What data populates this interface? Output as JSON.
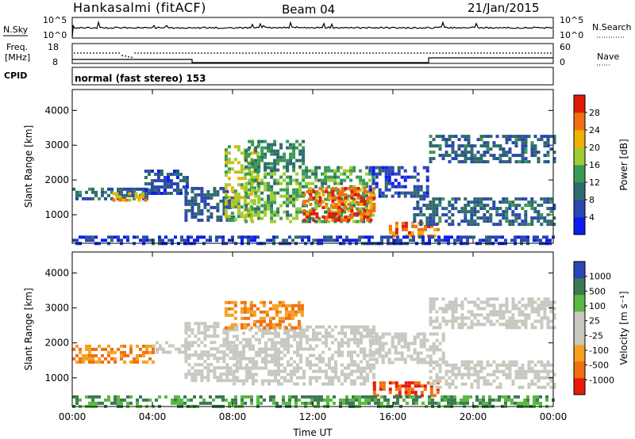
{
  "header": {
    "station": "Hankasalmi (fitACF)",
    "beam": "Beam 04",
    "date": "21/Jan/2015"
  },
  "aux_panel": {
    "nsky_label": "N.Sky",
    "nsky_ticks": [
      "10^5",
      "10^0"
    ],
    "nsearch_label": "N.Search",
    "nsearch_ticks": [
      "10^5",
      "10^0"
    ],
    "freq_label": "Freq.",
    "freq_unit": "[MHz]",
    "freq_ticks": [
      "18",
      "8"
    ],
    "nave_label": "Nave",
    "nave_ticks": [
      "60",
      "0"
    ],
    "cpid_label": "CPID",
    "cpid_text": "normal (fast stereo) 153"
  },
  "colors": {
    "power_scale": [
      "#0a1cf0",
      "#2a46b0",
      "#2f6b6b",
      "#3a9a55",
      "#a0cc30",
      "#f0b000",
      "#f07010",
      "#e01a0a"
    ],
    "velocity_scale": [
      "#e81a0a",
      "#f07010",
      "#f6a020",
      "#c8c8c0",
      "#c8c8c0",
      "#5ab840",
      "#3a7a52",
      "#2a46b8"
    ],
    "frame": "#000000"
  },
  "chart_data": [
    {
      "type": "heatmap",
      "title": "",
      "xlabel": "Time UT",
      "ylabel": "Slant Range [km]",
      "x_ticks": [
        "00:00",
        "04:00",
        "08:00",
        "12:00",
        "16:00",
        "20:00",
        "00:00"
      ],
      "xlim": [
        0,
        24
      ],
      "y_ticks": [
        "1000",
        "2000",
        "3000",
        "4000"
      ],
      "ylim": [
        180,
        4600
      ],
      "colorbar": {
        "label": "Power [dB]",
        "ticks": [
          "4",
          "8",
          "12",
          "16",
          "20",
          "24",
          "28"
        ],
        "range": [
          0,
          32
        ]
      },
      "regions": [
        {
          "t0": 0.0,
          "t1": 3.8,
          "r0": 1420,
          "r1": 1780,
          "value": 9
        },
        {
          "t0": 2.0,
          "t1": 3.6,
          "r0": 1450,
          "r1": 1650,
          "value": 22
        },
        {
          "t0": 3.6,
          "t1": 5.8,
          "r0": 1650,
          "r1": 2300,
          "value": 7
        },
        {
          "t0": 5.6,
          "t1": 8.0,
          "r0": 800,
          "r1": 1800,
          "value": 8
        },
        {
          "t0": 7.6,
          "t1": 9.2,
          "r0": 900,
          "r1": 3000,
          "value": 18
        },
        {
          "t0": 8.6,
          "t1": 15.0,
          "r0": 800,
          "r1": 2400,
          "value": 15
        },
        {
          "t0": 11.5,
          "t1": 15.0,
          "r0": 800,
          "r1": 1800,
          "value": 27
        },
        {
          "t0": 8.6,
          "t1": 11.5,
          "r0": 2300,
          "r1": 3150,
          "value": 12
        },
        {
          "t0": 14.8,
          "t1": 17.8,
          "r0": 1500,
          "r1": 2400,
          "value": 6
        },
        {
          "t0": 15.8,
          "t1": 18.2,
          "r0": 350,
          "r1": 800,
          "value": 25
        },
        {
          "t0": 17.0,
          "t1": 24.0,
          "r0": 700,
          "r1": 1500,
          "value": 9
        },
        {
          "t0": 17.8,
          "t1": 24.0,
          "r0": 2500,
          "r1": 3300,
          "value": 9
        },
        {
          "t0": 0.0,
          "t1": 24.0,
          "r0": 200,
          "r1": 400,
          "value": 5
        }
      ]
    },
    {
      "type": "heatmap",
      "title": "",
      "xlabel": "Time UT",
      "ylabel": "Slant Range [km]",
      "x_ticks": [
        "00:00",
        "04:00",
        "08:00",
        "12:00",
        "16:00",
        "20:00",
        "00:00"
      ],
      "xlim": [
        0,
        24
      ],
      "y_ticks": [
        "1000",
        "2000",
        "3000",
        "4000"
      ],
      "ylim": [
        180,
        4600
      ],
      "colorbar": {
        "label": "Velocity [m s⁻¹]",
        "ticks": [
          "1000",
          "500",
          "100",
          "25",
          "-25",
          "-100",
          "-500",
          "-1000"
        ]
      },
      "regions": [
        {
          "t0": 0.0,
          "t1": 4.0,
          "r0": 1450,
          "r1": 1950,
          "value": -100
        },
        {
          "t0": 4.0,
          "t1": 5.8,
          "r0": 1750,
          "r1": 2050,
          "value": 0
        },
        {
          "t0": 5.6,
          "t1": 8.2,
          "r0": 900,
          "r1": 2600,
          "value": 0
        },
        {
          "t0": 8.0,
          "t1": 15.0,
          "r0": 800,
          "r1": 2500,
          "value": 0
        },
        {
          "t0": 7.6,
          "t1": 11.5,
          "r0": 2400,
          "r1": 3200,
          "value": -100
        },
        {
          "t0": 14.8,
          "t1": 18.5,
          "r0": 1400,
          "r1": 2300,
          "value": 0
        },
        {
          "t0": 15.0,
          "t1": 18.2,
          "r0": 450,
          "r1": 900,
          "value": -500
        },
        {
          "t0": 17.8,
          "t1": 24.0,
          "r0": 700,
          "r1": 1500,
          "value": 0
        },
        {
          "t0": 17.8,
          "t1": 24.0,
          "r0": 2400,
          "r1": 3300,
          "value": 0
        },
        {
          "t0": 0.0,
          "t1": 24.0,
          "r0": 200,
          "r1": 500,
          "value": 100
        }
      ]
    }
  ]
}
